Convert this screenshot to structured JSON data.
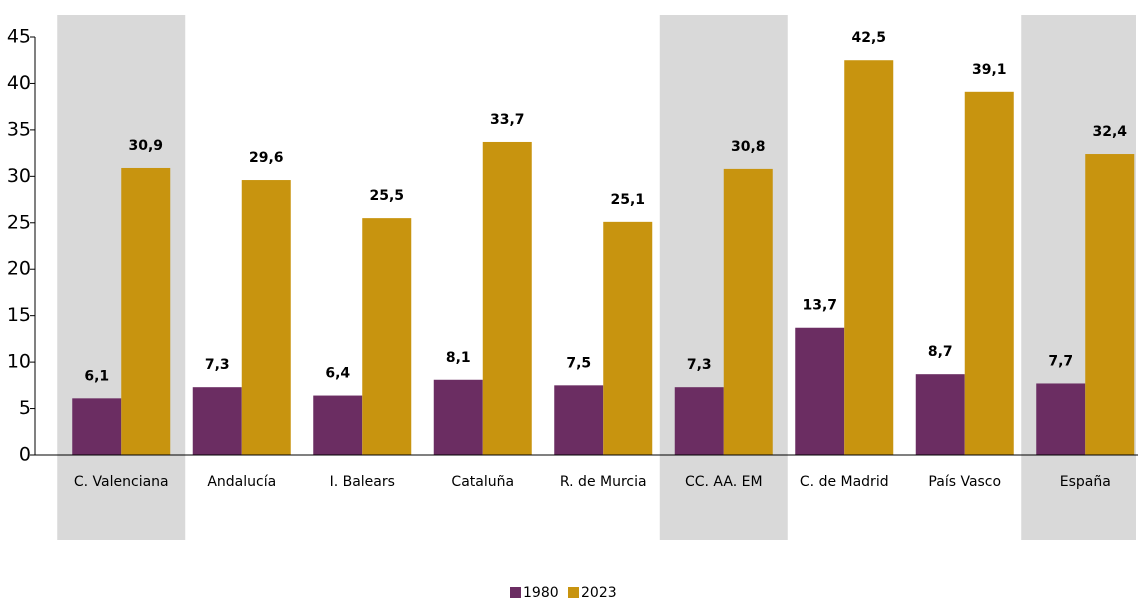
{
  "chart_data": {
    "type": "bar",
    "categories": [
      "C. Valenciana",
      "Andalucía",
      "I. Balears",
      "Cataluña",
      "R. de Murcia",
      "CC. AA. EM",
      "C. de Madrid",
      "País Vasco",
      "España"
    ],
    "series": [
      {
        "name": "1980",
        "color": "#6b2d62",
        "values": [
          6.1,
          7.3,
          6.4,
          8.1,
          7.5,
          7.3,
          13.7,
          8.7,
          7.7
        ],
        "value_labels": [
          "6,1",
          "7,3",
          "6,4",
          "8,1",
          "7,5",
          "7,3",
          "13,7",
          "8,7",
          "7,7"
        ]
      },
      {
        "name": "2023",
        "color": "#c8940f",
        "values": [
          30.9,
          29.6,
          25.5,
          33.7,
          25.1,
          30.8,
          42.5,
          39.1,
          32.4
        ],
        "value_labels": [
          "30,9",
          "29,6",
          "25,5",
          "33,7",
          "25,1",
          "30,8",
          "42,5",
          "39,1",
          "32,4"
        ]
      }
    ],
    "ylim": [
      0,
      45
    ],
    "yticks": [
      0,
      5,
      10,
      15,
      20,
      25,
      30,
      35,
      40,
      45
    ],
    "highlighted_categories": [
      0,
      5,
      8
    ],
    "highlight_color": "#d9d9d9",
    "legend": "bottom"
  }
}
